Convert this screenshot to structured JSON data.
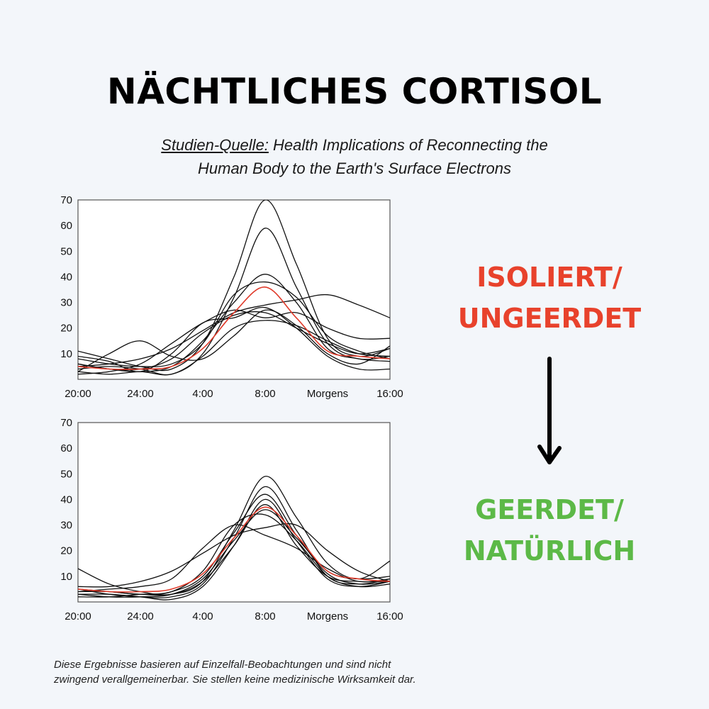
{
  "title": "NÄCHTLICHES CORTISOL",
  "source": {
    "label": "Studien-Quelle:",
    "text_line1": "Health Implications of Reconnecting the",
    "text_line2": "Human Body to the Earth's Surface Electrons"
  },
  "labels": {
    "top_line1": "ISOLIERT/",
    "top_line2": "UNGEERDET",
    "bottom_line1": "GEERDET/",
    "bottom_line2": "NATÜRLICH"
  },
  "colors": {
    "isolated": "#e8422c",
    "grounded": "#5cb947",
    "mean_line": "#e03a2a",
    "lines": "#111111"
  },
  "arrow_icon": "arrow-down-icon",
  "disclaimer": {
    "line1": "Diese Ergebnisse basieren auf Einzelfall-Beobachtungen und sind nicht",
    "line2": "zwingend verallgemeinerbar. Sie stellen keine medizinische Wirksamkeit dar."
  },
  "chart_data": [
    {
      "type": "line",
      "ylim": [
        0,
        70
      ],
      "yticks": [
        "70",
        "60",
        "50",
        "40",
        "30",
        "20",
        "10"
      ],
      "ytick_values": [
        70,
        60,
        50,
        40,
        30,
        20,
        10
      ],
      "xticks": [
        "20:00",
        "24:00",
        "4:00",
        "8:00",
        "Morgens",
        "16:00"
      ],
      "x": [
        0,
        2,
        4,
        6,
        8,
        10,
        12,
        14,
        16,
        18,
        20
      ],
      "grid": false,
      "series": [
        {
          "values": [
            11,
            8,
            5,
            4,
            14,
            40,
            70,
            45,
            16,
            9,
            12
          ],
          "highlight": false
        },
        {
          "values": [
            4,
            5,
            4,
            2,
            10,
            32,
            59,
            36,
            14,
            8,
            9
          ],
          "highlight": false
        },
        {
          "values": [
            6,
            4,
            3,
            5,
            15,
            30,
            41,
            30,
            12,
            8,
            7
          ],
          "highlight": false
        },
        {
          "values": [
            3,
            10,
            15,
            9,
            8,
            17,
            27,
            21,
            10,
            6,
            13
          ],
          "highlight": false
        },
        {
          "values": [
            5,
            6,
            8,
            12,
            19,
            26,
            29,
            31,
            33,
            29,
            24
          ],
          "highlight": false
        },
        {
          "values": [
            9,
            7,
            3,
            10,
            22,
            24,
            28,
            20,
            9,
            4,
            4
          ],
          "highlight": false
        },
        {
          "values": [
            2,
            3,
            6,
            14,
            22,
            27,
            24,
            26,
            20,
            16,
            16
          ],
          "highlight": false
        },
        {
          "values": [
            6,
            4,
            4,
            8,
            18,
            25,
            26,
            20,
            14,
            10,
            12
          ],
          "highlight": false
        },
        {
          "values": [
            8,
            6,
            5,
            6,
            14,
            33,
            38,
            32,
            17,
            11,
            8
          ],
          "highlight": false
        },
        {
          "values": [
            3,
            2,
            3,
            2,
            9,
            20,
            23,
            21,
            15,
            10,
            9
          ],
          "highlight": false
        },
        {
          "values": [
            5,
            4,
            4,
            5,
            12,
            26,
            36,
            24,
            11,
            9,
            8
          ],
          "highlight": true
        }
      ]
    },
    {
      "type": "line",
      "ylim": [
        0,
        70
      ],
      "yticks": [
        "70",
        "60",
        "50",
        "40",
        "30",
        "20",
        "10"
      ],
      "ytick_values": [
        70,
        60,
        50,
        40,
        30,
        20,
        10
      ],
      "xticks": [
        "20:00",
        "24:00",
        "4:00",
        "8:00",
        "Morgens",
        "16:00"
      ],
      "x": [
        0,
        2,
        4,
        6,
        8,
        10,
        12,
        14,
        16,
        18,
        20
      ],
      "grid": false,
      "series": [
        {
          "values": [
            13,
            7,
            4,
            3,
            8,
            28,
            49,
            33,
            15,
            9,
            16
          ],
          "highlight": false
        },
        {
          "values": [
            5,
            3,
            2,
            2,
            7,
            25,
            45,
            28,
            10,
            7,
            9
          ],
          "highlight": false
        },
        {
          "values": [
            4,
            4,
            3,
            4,
            10,
            27,
            42,
            26,
            11,
            7,
            8
          ],
          "highlight": false
        },
        {
          "values": [
            3,
            3,
            2,
            1,
            6,
            22,
            40,
            24,
            9,
            6,
            8
          ],
          "highlight": false
        },
        {
          "values": [
            6,
            6,
            8,
            12,
            19,
            26,
            29,
            30,
            20,
            12,
            8
          ],
          "highlight": false
        },
        {
          "values": [
            4,
            5,
            6,
            9,
            21,
            30,
            26,
            21,
            13,
            8,
            9
          ],
          "highlight": false
        },
        {
          "values": [
            2,
            2,
            3,
            4,
            12,
            30,
            34,
            24,
            10,
            6,
            7
          ],
          "highlight": false
        },
        {
          "values": [
            3,
            2,
            2,
            3,
            9,
            24,
            36,
            25,
            12,
            9,
            10
          ],
          "highlight": false
        },
        {
          "values": [
            5,
            4,
            3,
            3,
            8,
            22,
            38,
            22,
            10,
            8,
            8
          ],
          "highlight": false
        },
        {
          "values": [
            5,
            4,
            4,
            5,
            11,
            25,
            37,
            26,
            12,
            9,
            8
          ],
          "highlight": true
        }
      ]
    }
  ]
}
